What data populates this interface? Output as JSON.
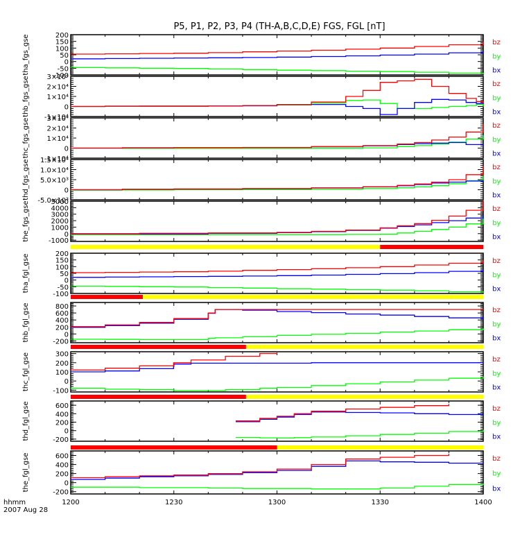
{
  "chart_data": {
    "type": "line",
    "title": "P5, P1, P2, P3, P4 (TH-A,B,C,D,E) FGS, FGL [nT]",
    "x_axis": {
      "label_line1": "hhmm",
      "label_line2": "2007 Aug 28",
      "tick_labels": [
        "1200",
        "1230",
        "1300",
        "1330",
        "1400"
      ],
      "range_minutes": [
        0,
        120
      ],
      "tick_minutes": [
        0,
        30,
        60,
        90,
        120
      ]
    },
    "legend": [
      {
        "name": "bz",
        "color": "#ff0000"
      },
      {
        "name": "by",
        "color": "#00ff00"
      },
      {
        "name": "bx",
        "color": "#0000ff"
      }
    ],
    "legend_placement": "right of each panel",
    "panels": [
      {
        "ylabel": "tha_fgs_gse",
        "ylim": [
          -100,
          200
        ],
        "tick_labels": [
          "200",
          "150",
          "100",
          "50",
          "0",
          "-50",
          "-100"
        ],
        "tick_values": [
          200,
          150,
          100,
          50,
          0,
          -50,
          -100
        ],
        "series": {
          "x": [
            0,
            10,
            20,
            30,
            40,
            50,
            60,
            70,
            80,
            90,
            100,
            110,
            120
          ],
          "bz": [
            55,
            57,
            60,
            62,
            66,
            72,
            78,
            84,
            92,
            100,
            112,
            125,
            150
          ],
          "by": [
            -45,
            -47,
            -50,
            -52,
            -56,
            -60,
            -65,
            -68,
            -72,
            -75,
            -80,
            -87,
            -95
          ],
          "bx": [
            20,
            22,
            24,
            26,
            28,
            30,
            33,
            37,
            42,
            48,
            55,
            65,
            80
          ]
        }
      },
      {
        "ylabel": "thb_fgs_gse",
        "ylim": [
          -10000,
          30000
        ],
        "tick_labels": [
          "3×10⁴",
          "2×10⁴",
          "1×10⁴",
          "0",
          "-1×10⁴"
        ],
        "tick_values": [
          30000,
          20000,
          10000,
          0,
          -10000
        ],
        "series": {
          "x": [
            0,
            10,
            20,
            40,
            50,
            60,
            70,
            80,
            85,
            90,
            95,
            100,
            105,
            110,
            115,
            118,
            120
          ],
          "bz": [
            0,
            400,
            500,
            600,
            1000,
            2000,
            4500,
            10000,
            16000,
            24000,
            25500,
            27000,
            20000,
            13000,
            8000,
            5000,
            3000
          ],
          "by": [
            0,
            300,
            300,
            400,
            700,
            1500,
            3500,
            6000,
            6500,
            3000,
            -2000,
            -2000,
            -1000,
            0,
            1000,
            2000,
            0
          ],
          "bx": [
            0,
            300,
            300,
            400,
            700,
            1800,
            2000,
            0,
            -2000,
            -8000,
            -2000,
            4000,
            7000,
            6500,
            4000,
            3000,
            2500
          ]
        }
      },
      {
        "ylabel": "thc_fgs_gse",
        "ylim": [
          -10000,
          30000
        ],
        "tick_labels": [
          "3×10⁴",
          "2×10⁴",
          "1×10⁴",
          "0",
          "-1×10⁴"
        ],
        "tick_values": [
          30000,
          20000,
          10000,
          0,
          -10000
        ],
        "series": {
          "x": [
            0,
            15,
            30,
            50,
            70,
            85,
            95,
            100,
            105,
            110,
            115,
            120
          ],
          "bz": [
            0,
            400,
            500,
            700,
            1500,
            2500,
            4000,
            5500,
            8000,
            11000,
            16000,
            24000
          ],
          "by": [
            0,
            -300,
            -300,
            -200,
            -200,
            300,
            1500,
            2500,
            4000,
            6000,
            9000,
            13000
          ],
          "bx": [
            0,
            300,
            400,
            600,
            1300,
            2300,
            3500,
            4500,
            5000,
            5500,
            3500,
            2000
          ]
        }
      },
      {
        "ylabel": "thd_fgs_gse",
        "ylim": [
          -5000,
          15000
        ],
        "tick_labels": [
          "1.5×10⁴",
          "1.0×10⁴",
          "5.0×10³",
          "0",
          "-5.0×10³"
        ],
        "tick_values": [
          15000,
          10000,
          5000,
          0,
          -5000
        ],
        "series": {
          "x": [
            0,
            15,
            30,
            50,
            70,
            85,
            95,
            100,
            105,
            110,
            115,
            120
          ],
          "bz": [
            0,
            300,
            400,
            600,
            1000,
            1500,
            2200,
            2900,
            3800,
            5000,
            7500,
            12000
          ],
          "by": [
            -200,
            -100,
            0,
            100,
            300,
            600,
            1000,
            1400,
            2000,
            3000,
            4500,
            7000
          ],
          "bx": [
            0,
            200,
            300,
            500,
            900,
            1400,
            2000,
            2600,
            3300,
            3800,
            4300,
            4800
          ]
        }
      },
      {
        "ylabel": "the_fgs_gse",
        "ylim": [
          -1200,
          5000
        ],
        "tick_labels": [
          "5000",
          "4000",
          "3000",
          "2000",
          "1000",
          "0",
          "-1000"
        ],
        "tick_values": [
          5000,
          4000,
          3000,
          2000,
          1000,
          0,
          -1000
        ],
        "series": {
          "x": [
            0,
            20,
            40,
            60,
            70,
            80,
            90,
            95,
            100,
            105,
            110,
            115,
            120
          ],
          "bz": [
            0,
            50,
            100,
            200,
            350,
            550,
            900,
            1200,
            1550,
            2050,
            2700,
            3600,
            5200
          ],
          "by": [
            -150,
            -150,
            -150,
            -150,
            -150,
            -120,
            -100,
            100,
            350,
            650,
            1000,
            1500,
            2600
          ],
          "bx": [
            -50,
            -50,
            50,
            150,
            300,
            500,
            850,
            1100,
            1350,
            1700,
            2000,
            2400,
            2800
          ]
        }
      },
      {
        "ylabel": "tha_fgl_gse",
        "ylim": [
          -100,
          200
        ],
        "tick_labels": [
          "200",
          "150",
          "100",
          "50",
          "0",
          "-50",
          "-100"
        ],
        "tick_values": [
          200,
          150,
          100,
          50,
          0,
          -50,
          -100
        ],
        "series": {
          "x": [
            0,
            10,
            20,
            30,
            40,
            50,
            60,
            70,
            80,
            90,
            100,
            110,
            120
          ],
          "bz": [
            55,
            57,
            60,
            62,
            66,
            72,
            78,
            84,
            92,
            100,
            112,
            125,
            150
          ],
          "by": [
            -45,
            -47,
            -50,
            -52,
            -56,
            -60,
            -65,
            -68,
            -72,
            -75,
            -80,
            -87,
            -95
          ],
          "bx": [
            20,
            22,
            24,
            26,
            28,
            30,
            33,
            37,
            42,
            48,
            55,
            65,
            80
          ]
        }
      },
      {
        "ylabel": "thb_fgl_gse",
        "ylim": [
          -250,
          900
        ],
        "tick_labels": [
          "800",
          "600",
          "400",
          "200",
          "0",
          "-200"
        ],
        "tick_values": [
          800,
          600,
          400,
          200,
          0,
          -200
        ],
        "series": {
          "x": [
            0,
            10,
            20,
            30,
            40,
            42,
            50,
            60,
            70,
            80,
            90,
            100,
            110,
            120
          ],
          "bz": [
            210,
            260,
            330,
            440,
            600,
            700,
            700,
            700,
            700,
            700,
            700,
            700,
            700,
            700
          ],
          "by": [
            -150,
            -155,
            -160,
            -160,
            -125,
            -110,
            -80,
            -40,
            -10,
            20,
            55,
            85,
            120,
            160
          ],
          "bx": [
            190,
            240,
            310,
            420,
            590,
            700,
            680,
            640,
            610,
            570,
            540,
            500,
            460,
            400
          ]
        }
      },
      {
        "ylabel": "thc_fgl_gse",
        "ylim": [
          -120,
          320
        ],
        "tick_labels": [
          "300",
          "200",
          "100",
          "0",
          "-100"
        ],
        "tick_values": [
          300,
          200,
          100,
          0,
          -100
        ],
        "series": {
          "x": [
            0,
            10,
            20,
            29.9,
            30,
            35,
            45,
            55,
            60,
            70,
            80,
            90,
            100,
            110,
            120
          ],
          "bz": [
            120,
            140,
            165,
            195,
            200,
            230,
            270,
            300,
            320,
            null,
            null,
            null,
            null,
            null,
            null
          ],
          "by": [
            -80,
            -90,
            -95,
            -100,
            -105,
            -105,
            -95,
            -80,
            -70,
            -50,
            -30,
            -10,
            10,
            30,
            50
          ],
          "bx": [
            100,
            110,
            135,
            160,
            185,
            195,
            195,
            195,
            195,
            200,
            200,
            200,
            200,
            200,
            200
          ]
        }
      },
      {
        "ylabel": "thd_fgl_gse",
        "ylim": [
          -250,
          700
        ],
        "tick_labels": [
          "600",
          "400",
          "200",
          "0",
          "-200"
        ],
        "tick_values": [
          600,
          400,
          200,
          0,
          -200
        ],
        "series": {
          "x": [
            48,
            55,
            60,
            65,
            70,
            80,
            90,
            100,
            110,
            120
          ],
          "bz": [
            230,
            290,
            340,
            400,
            460,
            510,
            550,
            590,
            630,
            null
          ],
          "by": [
            -160,
            -170,
            -175,
            -165,
            -150,
            -120,
            -90,
            -60,
            -20,
            20
          ],
          "bx": [
            210,
            270,
            320,
            380,
            440,
            430,
            420,
            400,
            380,
            350
          ]
        }
      },
      {
        "ylabel": "the_fgl_gse",
        "ylim": [
          -250,
          700
        ],
        "tick_labels": [
          "600",
          "400",
          "200",
          "0",
          "-200"
        ],
        "tick_values": [
          600,
          400,
          200,
          0,
          -200
        ],
        "series": {
          "x": [
            0,
            10,
            20,
            30,
            40,
            50,
            60,
            70,
            80,
            90,
            100,
            110,
            120
          ],
          "bz": [
            110,
            130,
            150,
            170,
            200,
            240,
            300,
            400,
            520,
            560,
            600,
            640,
            null
          ],
          "by": [
            -100,
            -100,
            -110,
            -110,
            -120,
            -130,
            -130,
            -140,
            -140,
            -120,
            -80,
            -40,
            -20
          ],
          "bx": [
            70,
            100,
            130,
            150,
            180,
            220,
            270,
            360,
            480,
            460,
            450,
            430,
            410
          ]
        }
      }
    ],
    "state_bars": [
      {
        "segments": [
          {
            "from": 0,
            "to": 90,
            "color": "#ffff00"
          },
          {
            "from": 90,
            "to": 120,
            "color": "#ff0000"
          }
        ]
      },
      {
        "segments": [
          {
            "from": 0,
            "to": 21,
            "color": "#ff0000"
          },
          {
            "from": 21,
            "to": 120,
            "color": "#ffff00"
          }
        ]
      },
      {
        "segments": [
          {
            "from": 0,
            "to": 51,
            "color": "#ff0000"
          },
          {
            "from": 51,
            "to": 120,
            "color": "#ffff00"
          }
        ]
      },
      {
        "segments": [
          {
            "from": 0,
            "to": 51,
            "color": "#ff0000"
          },
          {
            "from": 51,
            "to": 120,
            "color": "#ffff00"
          }
        ]
      },
      {
        "segments": [
          {
            "from": 0,
            "to": 60,
            "color": "#ff0000"
          },
          {
            "from": 60,
            "to": 120,
            "color": "#ffff00"
          }
        ]
      }
    ]
  }
}
